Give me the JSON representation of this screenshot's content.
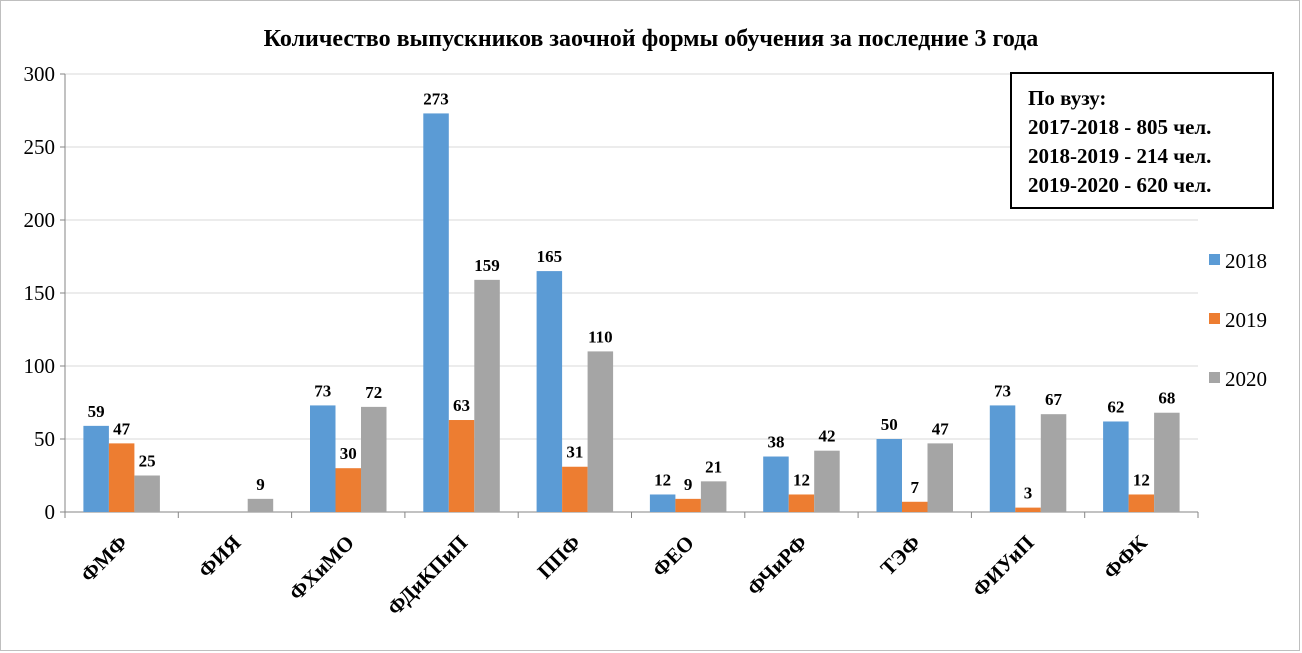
{
  "chart_data": {
    "type": "bar",
    "title": "Количество выпускников заочной формы обучения за последние 3 года",
    "categories": [
      "ФМФ",
      "ФИЯ",
      "ФХиМО",
      "ФДиКПиП",
      "ППФ",
      "ФЕО",
      "ФЧиРФ",
      "ТЭФ",
      "ФИУиП",
      "ФФК"
    ],
    "series": [
      {
        "name": "2018",
        "color": "#5b9bd5",
        "values": [
          59,
          null,
          73,
          273,
          165,
          12,
          38,
          50,
          73,
          62
        ]
      },
      {
        "name": "2019",
        "color": "#ed7d31",
        "values": [
          47,
          null,
          30,
          63,
          31,
          9,
          12,
          7,
          3,
          12
        ]
      },
      {
        "name": "2020",
        "color": "#a5a5a5",
        "values": [
          25,
          9,
          72,
          159,
          110,
          21,
          42,
          47,
          67,
          68
        ]
      }
    ],
    "yticks": [
      0,
      50,
      100,
      150,
      200,
      250,
      300
    ],
    "ylim": [
      0,
      300
    ],
    "grid": true,
    "legend": "right",
    "data_labels": true
  },
  "info_box": {
    "lines": [
      "По вузу:",
      "2017-2018 - 805 чел.",
      "2018-2019 - 214 чел.",
      "2019-2020 - 620 чел."
    ]
  }
}
